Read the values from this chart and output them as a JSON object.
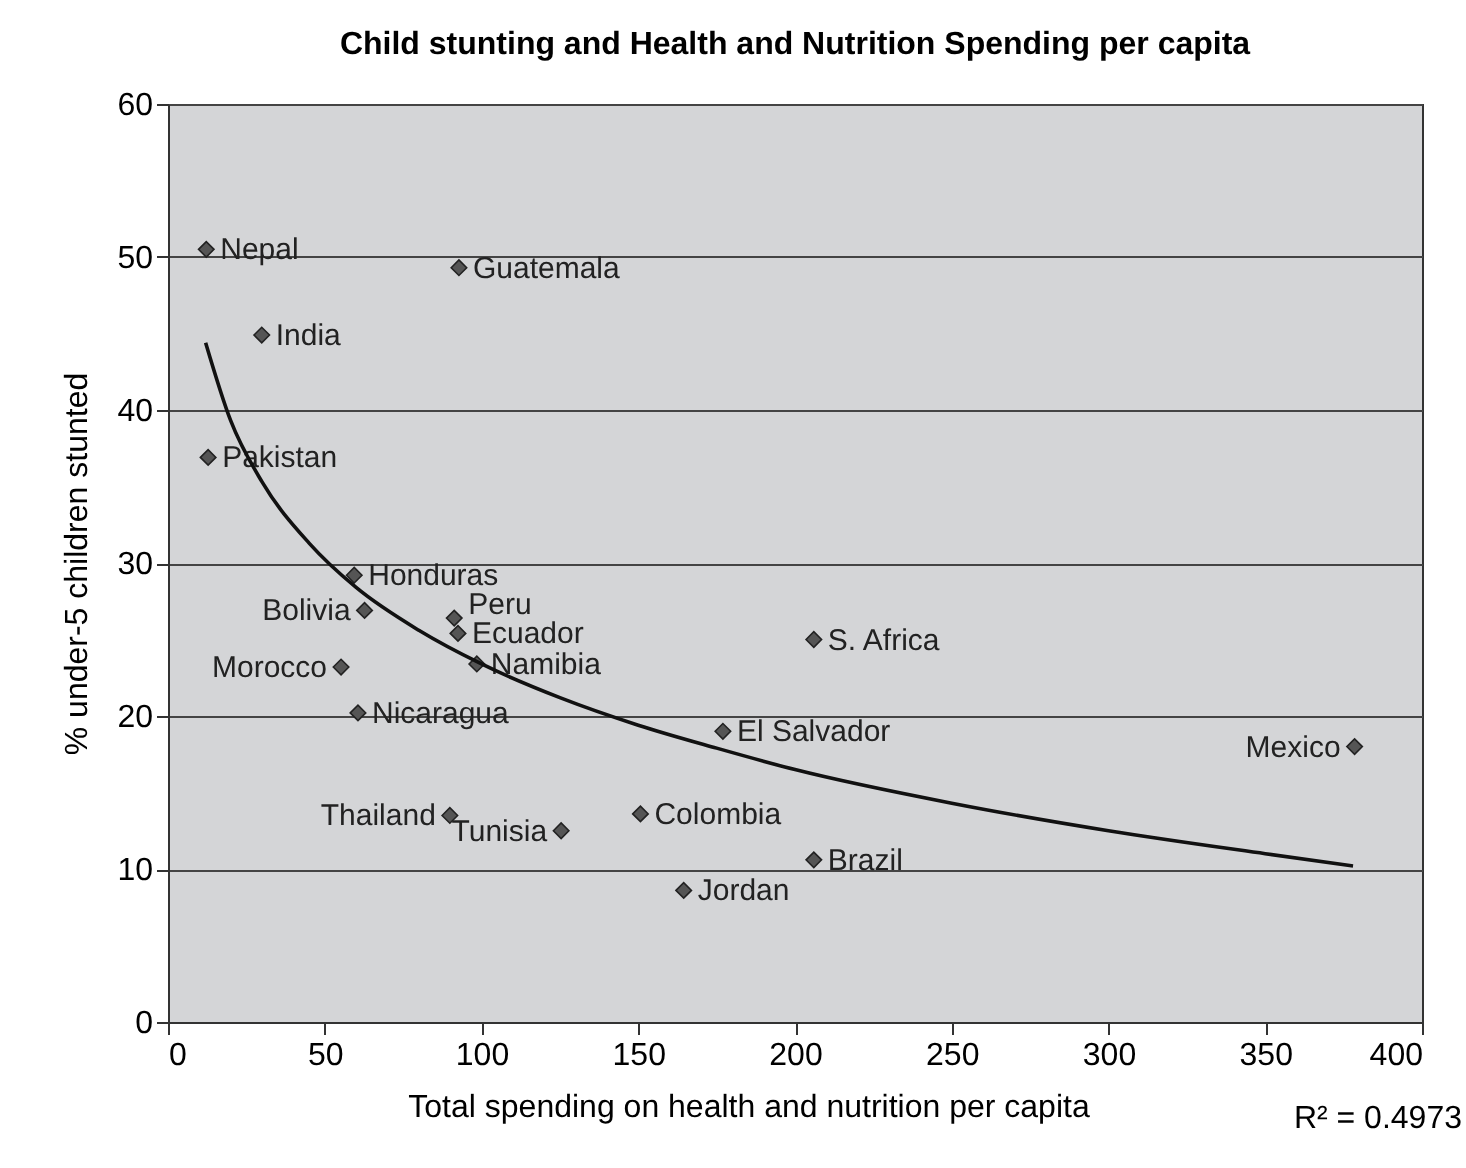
{
  "chart_data": {
    "type": "scatter",
    "title": "Child stunting and Health and Nutrition Spending per capita",
    "xlabel": "Total spending on health and nutrition per capita",
    "ylabel": "% under-5 children stunted",
    "annotations": [
      "R² = 0.4973"
    ],
    "xlim": [
      0,
      400
    ],
    "xticks": [
      0,
      50,
      100,
      150,
      200,
      250,
      300,
      350,
      400
    ],
    "ylim": [
      0,
      60
    ],
    "yticks": [
      0,
      10,
      20,
      30,
      40,
      50,
      60
    ],
    "grid": "y",
    "marker": "diamond",
    "series": [
      {
        "color": "#555555",
        "x": [
          12.2,
          92.8,
          29.9,
          12.8,
          59.4,
          62.7,
          91.3,
          92.5,
          98.5,
          206,
          55.2,
          60.6,
          177,
          378.5,
          89.9,
          150.7,
          125.4,
          206,
          164.5
        ],
        "values": [
          50.5,
          49.3,
          44.9,
          36.9,
          29.2,
          26.9,
          26.4,
          25.4,
          23.4,
          25.0,
          23.2,
          20.2,
          19.0,
          18.0,
          13.5,
          13.6,
          12.5,
          10.6,
          8.6
        ],
        "value_labels": [
          "Nepal",
          "Guatemala",
          "India",
          "Pakistan",
          "Honduras",
          "Bolivia",
          "Peru",
          "Ecuador",
          "Namibia",
          "S. Africa",
          "Morocco",
          "Nicaragua",
          "El Salvador",
          "Mexico",
          "Thailand",
          "Colombia",
          "Tunisia",
          "Brazil",
          "Jordan"
        ]
      },
      {
        "type": "line",
        "marker": "none",
        "color": "#111111",
        "x": [
          12,
          20,
          30,
          45,
          60,
          80,
          100,
          125,
          150,
          175,
          200,
          250,
          300,
          350,
          378
        ],
        "values": [
          44.4,
          39.3,
          35.3,
          31.3,
          28.4,
          25.6,
          23.4,
          21.2,
          19.4,
          17.9,
          16.5,
          14.3,
          12.5,
          11.0,
          10.2
        ]
      }
    ]
  }
}
